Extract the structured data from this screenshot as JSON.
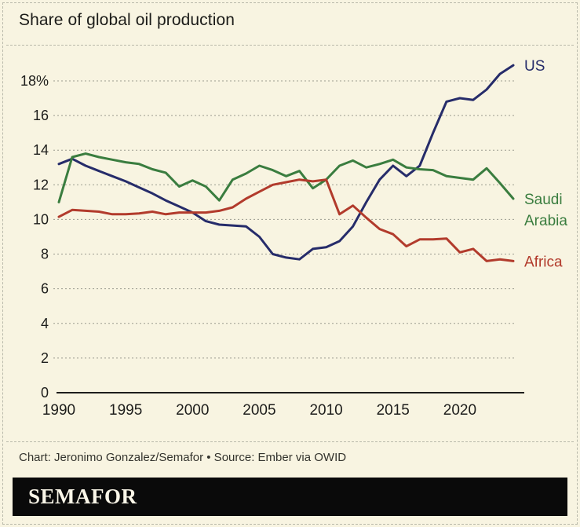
{
  "title": "Share of global oil production",
  "colors": {
    "background": "#f8f4e1",
    "us": "#262c6a",
    "saudi_arabia": "#3a7d3f",
    "africa": "#b23b2c",
    "grid": "#9b9b90",
    "axis": "#1d1d1b",
    "logo_bar": "#0a0a0a"
  },
  "chart_data": {
    "type": "line",
    "title": "Share of global oil production",
    "xlabel": "",
    "ylabel": "",
    "unit": "%",
    "grid": "horizontal-dashed",
    "legend_position": "right-of-line-ends",
    "xlim": [
      1990,
      2024.8
    ],
    "ylim": [
      0,
      19.9
    ],
    "x_ticks": [
      1990,
      1995,
      2000,
      2005,
      2010,
      2015,
      2020
    ],
    "y_ticks": [
      0,
      2,
      4,
      6,
      8,
      10,
      12,
      14,
      16,
      18
    ],
    "y_tick_labels": [
      "0",
      "2",
      "4",
      "6",
      "8",
      "10",
      "12",
      "14",
      "16",
      "18%"
    ],
    "x": [
      1990,
      1991,
      1992,
      1993,
      1994,
      1995,
      1996,
      1997,
      1998,
      1999,
      2000,
      2001,
      2002,
      2003,
      2004,
      2005,
      2006,
      2007,
      2008,
      2009,
      2010,
      2011,
      2012,
      2013,
      2014,
      2015,
      2016,
      2017,
      2018,
      2019,
      2020,
      2021,
      2022,
      2023,
      2024
    ],
    "series": [
      {
        "name": "US",
        "label_lines": [
          "US"
        ],
        "color_key": "us",
        "values": [
          13.2,
          13.5,
          13.1,
          12.8,
          12.5,
          12.2,
          11.85,
          11.5,
          11.1,
          10.75,
          10.4,
          9.9,
          9.7,
          9.65,
          9.6,
          9.0,
          8.0,
          7.8,
          7.7,
          8.3,
          8.4,
          8.75,
          9.6,
          11.0,
          12.3,
          13.1,
          12.5,
          13.1,
          15.0,
          16.8,
          17.0,
          16.9,
          17.5,
          18.4,
          18.9
        ]
      },
      {
        "name": "Saudi Arabia",
        "label_lines": [
          "Saudi",
          "Arabia"
        ],
        "color_key": "saudi_arabia",
        "values": [
          11.0,
          13.6,
          13.8,
          13.6,
          13.45,
          13.3,
          13.2,
          12.9,
          12.7,
          11.9,
          12.25,
          11.9,
          11.1,
          12.3,
          12.65,
          13.1,
          12.85,
          12.5,
          12.8,
          11.8,
          12.3,
          13.1,
          13.4,
          13.0,
          13.2,
          13.45,
          13.0,
          12.9,
          12.85,
          12.5,
          12.4,
          12.3,
          12.95,
          12.1,
          11.2
        ]
      },
      {
        "name": "Africa",
        "label_lines": [
          "Africa"
        ],
        "color_key": "africa",
        "values": [
          10.15,
          10.55,
          10.5,
          10.45,
          10.3,
          10.3,
          10.35,
          10.45,
          10.3,
          10.4,
          10.4,
          10.4,
          10.5,
          10.7,
          11.2,
          11.6,
          12.0,
          12.15,
          12.3,
          12.2,
          12.3,
          10.3,
          10.8,
          10.1,
          9.45,
          9.15,
          8.45,
          8.85,
          8.85,
          8.9,
          8.1,
          8.3,
          7.6,
          7.7,
          7.6
        ]
      }
    ]
  },
  "footer": {
    "credit": "Chart: Jeronimo Gonzalez/Semafor • Source: Ember via OWID",
    "logo_text": "SEMAFOR"
  }
}
